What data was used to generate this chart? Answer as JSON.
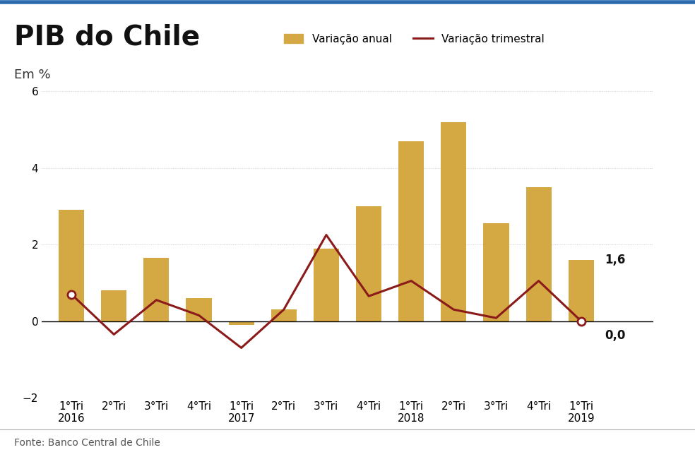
{
  "title": "PIB do Chile",
  "subtitle": "Em %",
  "source": "Fonte: Banco Central de Chile",
  "categories": [
    "1°Tri\n2016",
    "2°Tri",
    "3°Tri",
    "4°Tri",
    "1°Tri\n2017",
    "2°Tri",
    "3°Tri",
    "4°Tri",
    "1°Tri\n2018",
    "2°Tri",
    "3°Tri",
    "4°Tri",
    "1°Tri\n2019"
  ],
  "bar_values": [
    2.9,
    0.8,
    1.65,
    0.6,
    -0.1,
    0.3,
    1.9,
    3.0,
    4.7,
    5.2,
    2.55,
    3.5,
    1.6
  ],
  "line_values": [
    0.7,
    -0.35,
    0.55,
    0.15,
    -0.7,
    0.3,
    2.25,
    0.65,
    1.05,
    0.3,
    0.08,
    1.05,
    0.0
  ],
  "bar_color": "#D4A843",
  "line_color": "#8B1A1A",
  "open_circle_indices": [
    0,
    12
  ],
  "annotation_bar_last": "1,6",
  "annotation_line_last": "0,0",
  "ylim": [
    -2,
    6
  ],
  "yticks": [
    -2,
    0,
    2,
    4,
    6
  ],
  "legend_bar_label": "Variação anual",
  "legend_line_label": "Variação trimestral",
  "title_fontsize": 28,
  "subtitle_fontsize": 13,
  "axis_fontsize": 11,
  "source_fontsize": 10,
  "top_bar_color": "#2B6CB0",
  "header_line_color": "#2B6CB0",
  "background_color": "#ffffff"
}
